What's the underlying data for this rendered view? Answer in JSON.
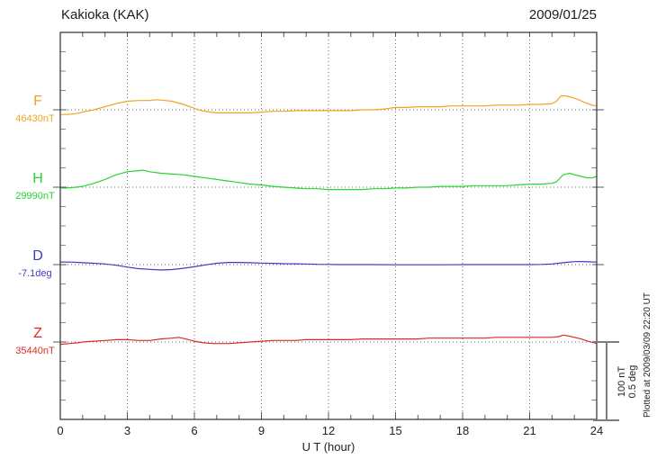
{
  "header": {
    "title": "Kakioka (KAK)",
    "date": "2009/01/25"
  },
  "xaxis": {
    "label": "U T (hour)"
  },
  "scale_bar": {
    "nT": "100 nT",
    "deg": "0.5 deg"
  },
  "plotted_at": "Plotted at 2009/03/09 22:20 UT",
  "colors": {
    "F": "#f0a41e",
    "H": "#28d432",
    "D": "#3c3cc8",
    "Z": "#dd2b22",
    "frame": "#2e2e2e",
    "grid": "#6b6b6b",
    "scalebar": "#7d7d7d"
  },
  "chart_data": {
    "type": "line",
    "title": "Kakioka (KAK) magnetogram",
    "subtitle": "2009/01/25",
    "xlabel": "U T (hour)",
    "x_range": [
      0,
      24
    ],
    "x_major_ticks": [
      0,
      3,
      6,
      9,
      12,
      15,
      18,
      21,
      24
    ],
    "x_minor_step": 1,
    "grid": "dotted vertical at 3h intervals, dotted horizontal at each series reference level",
    "scale": {
      "nT_per_division": 100,
      "deg_per_division": 0.5
    },
    "series": [
      {
        "name": "F",
        "unit": "nT",
        "ref": 46430,
        "ref_label": "46430nT",
        "color": "#f0a41e",
        "points": [
          [
            0,
            46424
          ],
          [
            0.3,
            46424
          ],
          [
            0.7,
            46425
          ],
          [
            1,
            46427
          ],
          [
            1.5,
            46430
          ],
          [
            2,
            46434
          ],
          [
            2.5,
            46438
          ],
          [
            3,
            46441
          ],
          [
            3.5,
            46442
          ],
          [
            4,
            46442
          ],
          [
            4.3,
            46443
          ],
          [
            4.7,
            46442
          ],
          [
            5,
            46441
          ],
          [
            5.5,
            46437
          ],
          [
            6,
            46432
          ],
          [
            6.3,
            46429
          ],
          [
            6.7,
            46427
          ],
          [
            7,
            46426
          ],
          [
            7.5,
            46426
          ],
          [
            8,
            46426
          ],
          [
            8.5,
            46426
          ],
          [
            9,
            46427
          ],
          [
            9.5,
            46428
          ],
          [
            10,
            46428
          ],
          [
            10.5,
            46429
          ],
          [
            11,
            46429
          ],
          [
            11.5,
            46429
          ],
          [
            12,
            46429
          ],
          [
            12.5,
            46429
          ],
          [
            13,
            46429
          ],
          [
            13.5,
            46430
          ],
          [
            14,
            46430
          ],
          [
            14.5,
            46431
          ],
          [
            15,
            46433
          ],
          [
            15.5,
            46433
          ],
          [
            16,
            46434
          ],
          [
            16.5,
            46434
          ],
          [
            17,
            46434
          ],
          [
            17.5,
            46435
          ],
          [
            18,
            46435
          ],
          [
            18.5,
            46435
          ],
          [
            19,
            46435
          ],
          [
            19.5,
            46436
          ],
          [
            20,
            46436
          ],
          [
            20.5,
            46436
          ],
          [
            21,
            46437
          ],
          [
            21.5,
            46437
          ],
          [
            22,
            46438
          ],
          [
            22.2,
            46441
          ],
          [
            22.4,
            46448
          ],
          [
            22.6,
            46448
          ],
          [
            22.9,
            46446
          ],
          [
            23.2,
            46443
          ],
          [
            23.5,
            46439
          ],
          [
            23.8,
            46436
          ],
          [
            24,
            46435
          ]
        ]
      },
      {
        "name": "H",
        "unit": "nT",
        "ref": 29990,
        "ref_label": "29990nT",
        "color": "#28d432",
        "points": [
          [
            0,
            29989
          ],
          [
            0.3,
            29989
          ],
          [
            0.7,
            29990
          ],
          [
            1,
            29991
          ],
          [
            1.5,
            29995
          ],
          [
            2,
            30000
          ],
          [
            2.5,
            30006
          ],
          [
            3,
            30010
          ],
          [
            3.4,
            30011
          ],
          [
            3.7,
            30012
          ],
          [
            4,
            30010
          ],
          [
            4.5,
            30008
          ],
          [
            5,
            30007
          ],
          [
            5.5,
            30006
          ],
          [
            6,
            30004
          ],
          [
            6.5,
            30002
          ],
          [
            7,
            30000
          ],
          [
            7.5,
            29998
          ],
          [
            8,
            29996
          ],
          [
            8.5,
            29994
          ],
          [
            9,
            29993
          ],
          [
            9.5,
            29991
          ],
          [
            10,
            29990
          ],
          [
            10.5,
            29989
          ],
          [
            11,
            29988
          ],
          [
            11.5,
            29988
          ],
          [
            12,
            29987
          ],
          [
            12.5,
            29987
          ],
          [
            13,
            29987
          ],
          [
            13.5,
            29987
          ],
          [
            14,
            29988
          ],
          [
            14.5,
            29988
          ],
          [
            15,
            29989
          ],
          [
            15.5,
            29989
          ],
          [
            16,
            29990
          ],
          [
            16.5,
            29990
          ],
          [
            17,
            29991
          ],
          [
            17.5,
            29991
          ],
          [
            18,
            29991
          ],
          [
            18.5,
            29992
          ],
          [
            19,
            29992
          ],
          [
            19.5,
            29992
          ],
          [
            20,
            29992
          ],
          [
            20.5,
            29993
          ],
          [
            21,
            29994
          ],
          [
            21.5,
            29994
          ],
          [
            22,
            29995
          ],
          [
            22.2,
            29997
          ],
          [
            22.5,
            30006
          ],
          [
            22.8,
            30008
          ],
          [
            23,
            30006
          ],
          [
            23.3,
            30004
          ],
          [
            23.6,
            30002
          ],
          [
            23.8,
            30002
          ],
          [
            24,
            30004
          ]
        ]
      },
      {
        "name": "D",
        "unit": "deg",
        "ref": -7.1,
        "ref_label": "-7.1deg",
        "color": "#3c3cc8",
        "points": [
          [
            0,
            -7.083
          ],
          [
            0.5,
            -7.084
          ],
          [
            1,
            -7.088
          ],
          [
            1.5,
            -7.091
          ],
          [
            2,
            -7.096
          ],
          [
            2.5,
            -7.104
          ],
          [
            3,
            -7.116
          ],
          [
            3.5,
            -7.126
          ],
          [
            4,
            -7.131
          ],
          [
            4.5,
            -7.135
          ],
          [
            5,
            -7.132
          ],
          [
            5.5,
            -7.124
          ],
          [
            6,
            -7.114
          ],
          [
            6.5,
            -7.102
          ],
          [
            7,
            -7.091
          ],
          [
            7.5,
            -7.086
          ],
          [
            8,
            -7.086
          ],
          [
            8.5,
            -7.088
          ],
          [
            9,
            -7.09
          ],
          [
            9.5,
            -7.092
          ],
          [
            10,
            -7.094
          ],
          [
            10.5,
            -7.095
          ],
          [
            11,
            -7.096
          ],
          [
            11.5,
            -7.098
          ],
          [
            12,
            -7.099
          ],
          [
            12.5,
            -7.1
          ],
          [
            13,
            -7.1
          ],
          [
            14,
            -7.1
          ],
          [
            15,
            -7.101
          ],
          [
            16,
            -7.101
          ],
          [
            17,
            -7.101
          ],
          [
            18,
            -7.1
          ],
          [
            19,
            -7.1
          ],
          [
            20,
            -7.1
          ],
          [
            21,
            -7.1
          ],
          [
            21.5,
            -7.099
          ],
          [
            22,
            -7.096
          ],
          [
            22.5,
            -7.088
          ],
          [
            23,
            -7.081
          ],
          [
            23.3,
            -7.08
          ],
          [
            23.6,
            -7.082
          ],
          [
            24,
            -7.084
          ]
        ]
      },
      {
        "name": "Z",
        "unit": "nT",
        "ref": 35440,
        "ref_label": "35440nT",
        "color": "#dd2b22",
        "points": [
          [
            0,
            35437
          ],
          [
            0.4,
            35438
          ],
          [
            0.8,
            35439
          ],
          [
            1,
            35440
          ],
          [
            1.5,
            35441
          ],
          [
            2,
            35442
          ],
          [
            2.5,
            35443
          ],
          [
            3,
            35443
          ],
          [
            3.5,
            35442
          ],
          [
            4,
            35442
          ],
          [
            4.5,
            35444
          ],
          [
            5,
            35445
          ],
          [
            5.3,
            35446
          ],
          [
            5.6,
            35444
          ],
          [
            6,
            35441
          ],
          [
            6.4,
            35439
          ],
          [
            6.8,
            35438
          ],
          [
            7.2,
            35438
          ],
          [
            7.6,
            35438
          ],
          [
            8,
            35439
          ],
          [
            8.5,
            35440
          ],
          [
            9,
            35441
          ],
          [
            9.5,
            35442
          ],
          [
            10,
            35442
          ],
          [
            10.5,
            35442
          ],
          [
            11,
            35443
          ],
          [
            11.5,
            35443
          ],
          [
            12,
            35443
          ],
          [
            12.5,
            35443
          ],
          [
            13,
            35443
          ],
          [
            13.5,
            35444
          ],
          [
            14,
            35444
          ],
          [
            14.5,
            35444
          ],
          [
            15,
            35444
          ],
          [
            15.5,
            35444
          ],
          [
            16,
            35444
          ],
          [
            16.5,
            35445
          ],
          [
            17,
            35445
          ],
          [
            17.5,
            35445
          ],
          [
            18,
            35445
          ],
          [
            18.5,
            35445
          ],
          [
            19,
            35445
          ],
          [
            19.5,
            35446
          ],
          [
            20,
            35446
          ],
          [
            20.5,
            35446
          ],
          [
            21,
            35446
          ],
          [
            21.5,
            35446
          ],
          [
            22,
            35446
          ],
          [
            22.3,
            35447
          ],
          [
            22.5,
            35449
          ],
          [
            22.7,
            35448
          ],
          [
            23,
            35446
          ],
          [
            23.3,
            35444
          ],
          [
            23.6,
            35441
          ],
          [
            24,
            35438
          ]
        ]
      }
    ]
  }
}
